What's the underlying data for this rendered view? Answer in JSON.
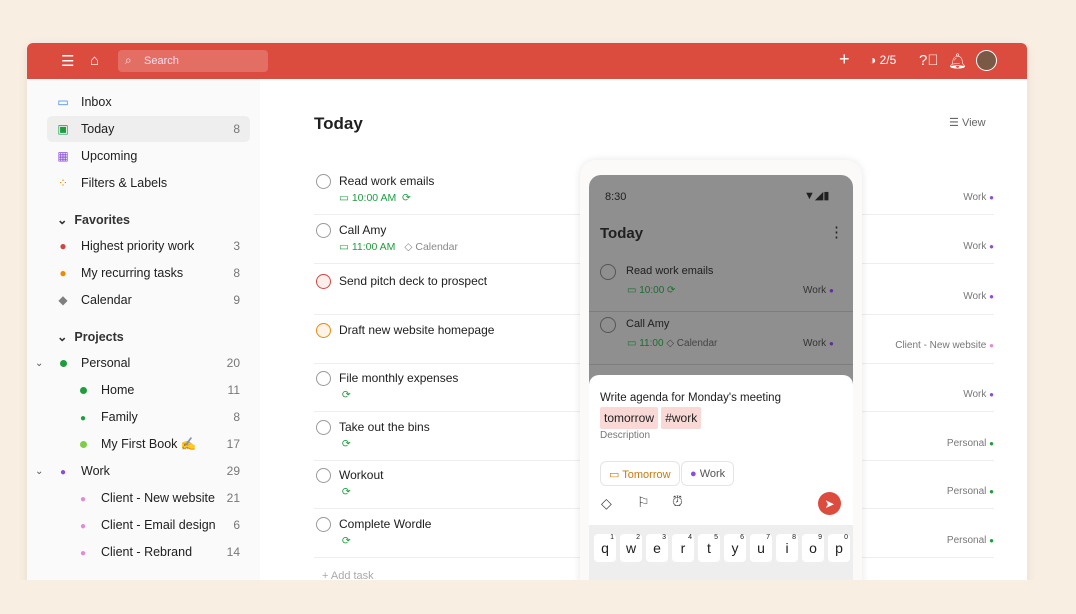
{
  "header": {
    "search_placeholder": "Search",
    "karma": "2/5"
  },
  "sidebar": {
    "nav": [
      {
        "label": "Inbox",
        "icon": "inbox-icon",
        "color": "#3d87e8"
      },
      {
        "label": "Today",
        "count": "8",
        "icon": "calendar-today-icon",
        "color": "#1f9d3e"
      },
      {
        "label": "Upcoming",
        "icon": "calendar-upcoming-icon",
        "color": "#8a4fd8"
      },
      {
        "label": "Filters & Labels",
        "icon": "grid-icon",
        "color": "#eb8909"
      }
    ],
    "favorites_label": "Favorites",
    "favorites": [
      {
        "label": "Highest priority work",
        "count": "3",
        "color": "#d1453b"
      },
      {
        "label": "My recurring tasks",
        "count": "8",
        "color": "#eb8909"
      },
      {
        "label": "Calendar",
        "count": "9",
        "color": "#808080"
      }
    ],
    "projects_label": "Projects",
    "projects": [
      {
        "label": "Personal",
        "count": "20",
        "color": "#1f9d3e"
      },
      {
        "label": "Home",
        "count": "11",
        "color": "#1f9d3e"
      },
      {
        "label": "Family",
        "count": "8",
        "color": "#1f9d3e"
      },
      {
        "label": "My First Book ✍️",
        "count": "17",
        "color": "#7ecc49"
      },
      {
        "label": "Work",
        "count": "29",
        "color": "#8a4fd8"
      },
      {
        "label": "Client - New website",
        "count": "21",
        "color": "#e08ad9"
      },
      {
        "label": "Client - Email design",
        "count": "6",
        "color": "#e08ad9"
      },
      {
        "label": "Client - Rebrand",
        "count": "14",
        "color": "#e08ad9"
      }
    ]
  },
  "main": {
    "title": "Today",
    "view_label": "View",
    "add_task": "Add task",
    "tasks": [
      {
        "title": "Read work emails",
        "time": "10:00 AM",
        "recurring": true,
        "project": "Work",
        "priority": "none"
      },
      {
        "title": "Call Amy",
        "time": "11:00 AM",
        "label": "Calendar",
        "project": "Work",
        "priority": "none"
      },
      {
        "title": "Send pitch deck to prospect",
        "project": "Work",
        "priority": "p1"
      },
      {
        "title": "Draft new website homepage",
        "project": "Client - New website",
        "priority": "p2"
      },
      {
        "title": "File monthly expenses",
        "recurring": true,
        "project": "Work",
        "priority": "none"
      },
      {
        "title": "Take out the bins",
        "recurring": true,
        "project": "Personal",
        "priority": "none"
      },
      {
        "title": "Workout",
        "recurring": true,
        "project": "Personal",
        "priority": "none"
      },
      {
        "title": "Complete Wordle",
        "recurring": true,
        "project": "Personal",
        "priority": "none"
      }
    ]
  },
  "phone": {
    "time": "8:30",
    "title": "Today",
    "tasks": [
      {
        "title": "Read work emails",
        "time": "10:00",
        "project": "Work"
      },
      {
        "title": "Call Amy",
        "time": "11:00",
        "label": "Calendar",
        "project": "Work"
      }
    ],
    "quick_add": {
      "text": "Write agenda for Monday's meeting",
      "chip_date": "tomorrow",
      "chip_project": "#work",
      "description_placeholder": "Description",
      "date_pill": "Tomorrow",
      "project_pill": "Work"
    },
    "keyboard": {
      "keys": [
        "q",
        "w",
        "e",
        "r",
        "t",
        "y",
        "u",
        "i",
        "o",
        "p"
      ],
      "hints": [
        "1",
        "2",
        "3",
        "4",
        "5",
        "6",
        "7",
        "8",
        "9",
        "0"
      ]
    }
  },
  "colors": {
    "brand": "#dc4c3e",
    "p1": "#d1453b",
    "p2": "#eb8909",
    "green": "#1f9d3e",
    "purple": "#8a4fd8"
  }
}
